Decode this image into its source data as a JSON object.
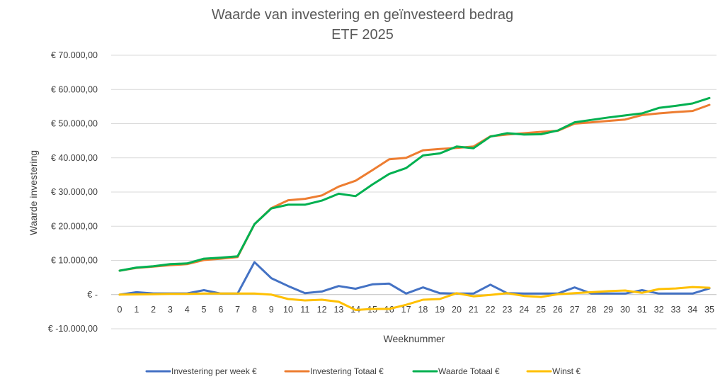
{
  "chart_data": {
    "type": "line",
    "title": "Waarde van investering en geïnvesteerd bedrag",
    "subtitle": "ETF 2025",
    "xlabel": "Weeknummer",
    "ylabel": "Waarde investering",
    "ylim": [
      -10000,
      70000
    ],
    "y_step": 10000,
    "y_tick_labels": [
      "€ -10.000,00",
      "€ -",
      "€ 10.000,00",
      "€ 20.000,00",
      "€ 30.000,00",
      "€ 40.000,00",
      "€ 50.000,00",
      "€ 60.000,00",
      "€ 70.000,00"
    ],
    "grid": true,
    "legend_position": "bottom",
    "x": [
      0,
      1,
      2,
      3,
      4,
      5,
      6,
      7,
      8,
      9,
      10,
      11,
      12,
      13,
      14,
      15,
      16,
      17,
      18,
      19,
      20,
      21,
      22,
      23,
      24,
      25,
      26,
      27,
      28,
      29,
      30,
      31,
      32,
      33,
      34,
      35
    ],
    "series": [
      {
        "name": "Investering per week €",
        "color": "#4472c4",
        "values": [
          0,
          700,
          350,
          350,
          350,
          1300,
          300,
          300,
          9500,
          4800,
          2500,
          400,
          900,
          2500,
          1700,
          3000,
          3200,
          300,
          2100,
          400,
          300,
          300,
          2900,
          400,
          300,
          300,
          300,
          2100,
          300,
          300,
          300,
          1300,
          300,
          300,
          300,
          1800
        ]
      },
      {
        "name": "Investering Totaal €",
        "color": "#ed7d31",
        "values": [
          7000,
          7800,
          8200,
          8600,
          8900,
          10100,
          10500,
          11000,
          20600,
          25300,
          27600,
          28000,
          29000,
          31600,
          33300,
          36400,
          39600,
          40000,
          42200,
          42600,
          42900,
          43300,
          46300,
          46800,
          47200,
          47600,
          47900,
          50000,
          50400,
          50800,
          51200,
          52500,
          53000,
          53400,
          53700,
          55500
        ]
      },
      {
        "name": "Waarde Totaal €",
        "color": "#00b050",
        "values": [
          7000,
          7900,
          8300,
          8900,
          9100,
          10500,
          10800,
          11200,
          20600,
          25200,
          26300,
          26300,
          27500,
          29500,
          28800,
          32200,
          35300,
          37000,
          40700,
          41300,
          43300,
          42800,
          46200,
          47200,
          46800,
          46900,
          48000,
          50400,
          51100,
          51800,
          52400,
          53000,
          54600,
          55200,
          55900,
          57500
        ]
      },
      {
        "name": "Winst €",
        "color": "#ffc000",
        "values": [
          0,
          50,
          100,
          200,
          200,
          300,
          300,
          300,
          300,
          0,
          -1300,
          -1700,
          -1500,
          -2100,
          -4500,
          -4200,
          -4200,
          -3000,
          -1500,
          -1300,
          400,
          -500,
          -100,
          400,
          -400,
          -700,
          100,
          400,
          700,
          1000,
          1200,
          500,
          1600,
          1800,
          2200,
          2000
        ]
      }
    ]
  }
}
